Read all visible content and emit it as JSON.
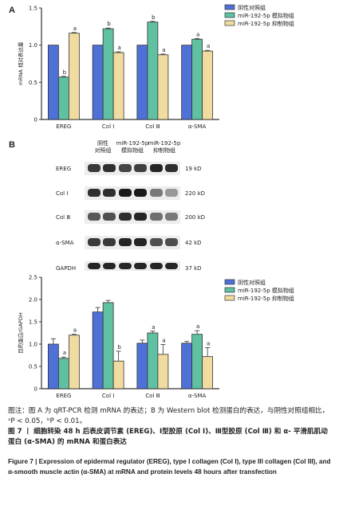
{
  "panels": {
    "a": "A",
    "b": "B"
  },
  "colors": {
    "control": "#4f71d7",
    "mimic": "#5fc0a2",
    "inhibitor": "#f0dca0",
    "stroke": "#333333"
  },
  "legend": [
    "阴性对照组",
    "miR-192-5p 模拟物组",
    "miR-192-5p 抑制物组"
  ],
  "chart_data": [
    {
      "type": "bar",
      "ylabel": "mRNA 相对表达量",
      "ylim": [
        0,
        1.5
      ],
      "yticks": [
        "0",
        "0.5",
        "1.0",
        "1.5"
      ],
      "categories": [
        "EREG",
        "Col Ⅰ",
        "Col Ⅲ",
        "α-SMA"
      ],
      "series": [
        {
          "name": "阴性对照组",
          "values": [
            1.0,
            1.0,
            1.0,
            1.0
          ],
          "errors": [
            0,
            0,
            0,
            0
          ],
          "marks": [
            "",
            "",
            "",
            ""
          ]
        },
        {
          "name": "miR-192-5p 模拟物组",
          "values": [
            0.57,
            1.22,
            1.31,
            1.08
          ],
          "errors": [
            0.01,
            0.01,
            0.01,
            0.01
          ],
          "marks": [
            "b",
            "b",
            "b",
            "a"
          ]
        },
        {
          "name": "miR-192-5p 抑制物组",
          "values": [
            1.16,
            0.9,
            0.87,
            0.92
          ],
          "errors": [
            0.01,
            0.01,
            0.01,
            0.01
          ],
          "marks": [
            "a",
            "a",
            "a",
            "a"
          ]
        }
      ]
    },
    {
      "type": "bar",
      "ylabel": "目的蛋白/GAPDH",
      "ylim": [
        0,
        2.5
      ],
      "yticks": [
        "0",
        "0.5",
        "1.0",
        "1.5",
        "2.0",
        "2.5"
      ],
      "categories": [
        "EREG",
        "Col Ⅰ",
        "Col Ⅲ",
        "α-SMA"
      ],
      "series": [
        {
          "name": "阴性对照组",
          "values": [
            1.0,
            1.72,
            1.02,
            1.02
          ],
          "errors": [
            0.12,
            0.1,
            0.07,
            0.04
          ],
          "marks": [
            "",
            "",
            "",
            ""
          ]
        },
        {
          "name": "miR-192-5p 模拟物组",
          "values": [
            0.68,
            1.93,
            1.25,
            1.22
          ],
          "errors": [
            0.03,
            0.05,
            0.04,
            0.08
          ],
          "marks": [
            "a",
            "",
            "a",
            "a"
          ]
        },
        {
          "name": "miR-192-5p 抑制物组",
          "values": [
            1.2,
            0.62,
            0.77,
            0.72
          ],
          "errors": [
            0.02,
            0.22,
            0.22,
            0.2
          ],
          "marks": [
            "a",
            "b",
            "a",
            "a"
          ]
        }
      ]
    }
  ],
  "blot": {
    "headers": [
      [
        "阴性",
        "对照组"
      ],
      [
        "miR-192-5p",
        "模拟物组"
      ],
      [
        "miR-192-5p",
        "抑制物组"
      ]
    ],
    "rows": [
      {
        "label": "EREG",
        "kd": "19 kD",
        "intensities": [
          0.85,
          0.9,
          0.8,
          0.82,
          0.95,
          0.9
        ]
      },
      {
        "label": "Col Ⅰ",
        "kd": "220 kD",
        "intensities": [
          0.9,
          0.9,
          1.0,
          1.0,
          0.55,
          0.4
        ]
      },
      {
        "label": "Col Ⅲ",
        "kd": "200 kD",
        "intensities": [
          0.7,
          0.75,
          0.9,
          0.95,
          0.6,
          0.55
        ]
      },
      {
        "label": "α-SMA",
        "kd": "42 kD",
        "intensities": [
          0.85,
          0.85,
          0.95,
          0.95,
          0.75,
          0.75
        ]
      },
      {
        "label": "GAPDH",
        "kd": "37 kD",
        "intensities": [
          0.95,
          0.95,
          0.95,
          0.95,
          0.95,
          0.95
        ]
      }
    ]
  },
  "caption": {
    "note": "图注：图 A 为 qRT-PCR 检测 mRNA 的表达；B 为 Western blot 检测蛋白的表达，与阴性对照组相比，ᵃP < 0.05，ᵇP < 0.01。",
    "title_cn": "图 7 丨 细胞转染 48 h 后表皮调节素 (EREG)、Ⅰ型胶原 (Col Ⅰ)、Ⅲ型胶原 (Col Ⅲ) 和 α- 平滑肌肌动蛋白 (α-SMA) 的 mRNA 和蛋白表达",
    "title_en": "Figure 7 | Expression of epidermal regulator (EREG), type I collagen (Col I), type III collagen (Col III), and α-smooth muscle actin (α-SMA) at mRNA and protein levels 48 hours after transfection"
  }
}
